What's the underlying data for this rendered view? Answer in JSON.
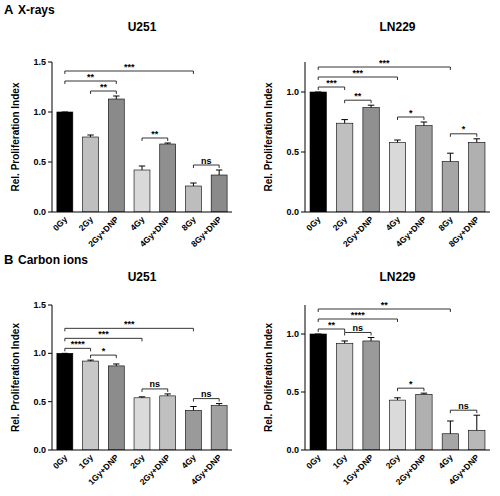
{
  "sections": [
    {
      "letter": "A",
      "title": "X-rays"
    },
    {
      "letter": "B",
      "title": "Carbon ions"
    }
  ],
  "chart_data": [
    {
      "type": "bar",
      "title": "U251",
      "y_label": "Rel. Proliferation Index",
      "grid": false,
      "categories": [
        "0Gy",
        "2Gy",
        "2Gy+DNP",
        "4Gy",
        "4Gy+DNP",
        "8Gy",
        "8Gy+DNP"
      ],
      "values": [
        1.0,
        0.75,
        1.13,
        0.42,
        0.68,
        0.26,
        0.37
      ],
      "errors": [
        0,
        0.02,
        0.03,
        0.04,
        0.01,
        0.03,
        0.05
      ],
      "colors": [
        "#000000",
        "#bfbfbf",
        "#8a8a8a",
        "#d9d9d9",
        "#8f8f8f",
        "#bdbdbd",
        "#8a8a8a"
      ],
      "ylim": [
        0,
        1.5
      ],
      "yticks": [
        {
          "value": 0,
          "label": "0.0"
        },
        {
          "value": 0.5,
          "label": "0.5"
        },
        {
          "value": 1.0,
          "label": "1.0"
        },
        {
          "value": 1.5,
          "label": "1.5"
        }
      ],
      "annotations": [
        {
          "from": 0,
          "to": 5,
          "label": "***"
        },
        {
          "from": 0,
          "to": 2,
          "label": "**"
        },
        {
          "from": 1,
          "to": 2,
          "label": "**"
        },
        {
          "from": 3,
          "to": 4,
          "label": "**"
        },
        {
          "from": 5,
          "to": 6,
          "label": "ns"
        }
      ]
    },
    {
      "type": "bar",
      "title": "LN229",
      "y_label": "Rel. Proliferation Index",
      "grid": false,
      "categories": [
        "0Gy",
        "2Gy",
        "2Gy+DNP",
        "4Gy",
        "4Gy+DNP",
        "8Gy",
        "8Gy+DNP"
      ],
      "values": [
        1.0,
        0.74,
        0.87,
        0.58,
        0.72,
        0.42,
        0.58
      ],
      "errors": [
        0,
        0.03,
        0.02,
        0.02,
        0.03,
        0.07,
        0.03
      ],
      "colors": [
        "#000000",
        "#bfbfbf",
        "#909090",
        "#d9d9d9",
        "#a0a0a0",
        "#a6a6a6",
        "#b0b0b0"
      ],
      "ylim": [
        0,
        1.25
      ],
      "yticks": [
        {
          "value": 0,
          "label": "0.0"
        },
        {
          "value": 0.5,
          "label": "0.5"
        },
        {
          "value": 1.0,
          "label": "1.0"
        }
      ],
      "annotations": [
        {
          "from": 0,
          "to": 1,
          "label": "***"
        },
        {
          "from": 1,
          "to": 2,
          "label": "**"
        },
        {
          "from": 0,
          "to": 3,
          "label": "***"
        },
        {
          "from": 3,
          "to": 4,
          "label": "*"
        },
        {
          "from": 0,
          "to": 5,
          "label": "***"
        },
        {
          "from": 5,
          "to": 6,
          "label": "*"
        }
      ]
    },
    {
      "type": "bar",
      "title": "U251",
      "y_label": "Rel. Proliferation Index",
      "grid": false,
      "categories": [
        "0Gy",
        "1Gy",
        "1Gy+DNP",
        "2Gy",
        "2Gy+DNP",
        "4Gy",
        "4Gy+DNP"
      ],
      "values": [
        1.0,
        0.92,
        0.87,
        0.54,
        0.56,
        0.41,
        0.46
      ],
      "errors": [
        0,
        0.01,
        0.02,
        0.01,
        0.02,
        0.04,
        0.02
      ],
      "colors": [
        "#000000",
        "#c8c8c8",
        "#8c8c8c",
        "#dadada",
        "#c0c0c0",
        "#9a9a9a",
        "#a0a0a0"
      ],
      "ylim": [
        0,
        1.5
      ],
      "yticks": [
        {
          "value": 0,
          "label": "0.0"
        },
        {
          "value": 0.5,
          "label": "0.5"
        },
        {
          "value": 1.0,
          "label": "1.0"
        },
        {
          "value": 1.5,
          "label": "1.5"
        }
      ],
      "annotations": [
        {
          "from": 0,
          "to": 1,
          "label": "****"
        },
        {
          "from": 1,
          "to": 2,
          "label": "*"
        },
        {
          "from": 0,
          "to": 3,
          "label": "***"
        },
        {
          "from": 3,
          "to": 4,
          "label": "ns"
        },
        {
          "from": 0,
          "to": 5,
          "label": "***"
        },
        {
          "from": 5,
          "to": 6,
          "label": "ns"
        }
      ]
    },
    {
      "type": "bar",
      "title": "LN229",
      "y_label": "Rel. Proliferation Index",
      "grid": false,
      "categories": [
        "0Gy",
        "1Gy",
        "1Gy+DNP",
        "2Gy",
        "2Gy+DNP",
        "4Gy",
        "4Gy+DNP"
      ],
      "values": [
        1.0,
        0.92,
        0.94,
        0.43,
        0.48,
        0.14,
        0.17
      ],
      "errors": [
        0,
        0.02,
        0.03,
        0.02,
        0.01,
        0.11,
        0.13
      ],
      "colors": [
        "#000000",
        "#c8c8c8",
        "#9a9a9a",
        "#dadada",
        "#b0b0b0",
        "#a6a6a6",
        "#b8b8b8"
      ],
      "ylim": [
        0,
        1.25
      ],
      "yticks": [
        {
          "value": 0,
          "label": "0.0"
        },
        {
          "value": 0.5,
          "label": "0.5"
        },
        {
          "value": 1.0,
          "label": "1.0"
        }
      ],
      "annotations": [
        {
          "from": 0,
          "to": 1,
          "label": "**"
        },
        {
          "from": 1,
          "to": 2,
          "label": "ns"
        },
        {
          "from": 0,
          "to": 3,
          "label": "****"
        },
        {
          "from": 3,
          "to": 4,
          "label": "*"
        },
        {
          "from": 0,
          "to": 5,
          "label": "**"
        },
        {
          "from": 5,
          "to": 6,
          "label": "ns"
        }
      ]
    }
  ]
}
